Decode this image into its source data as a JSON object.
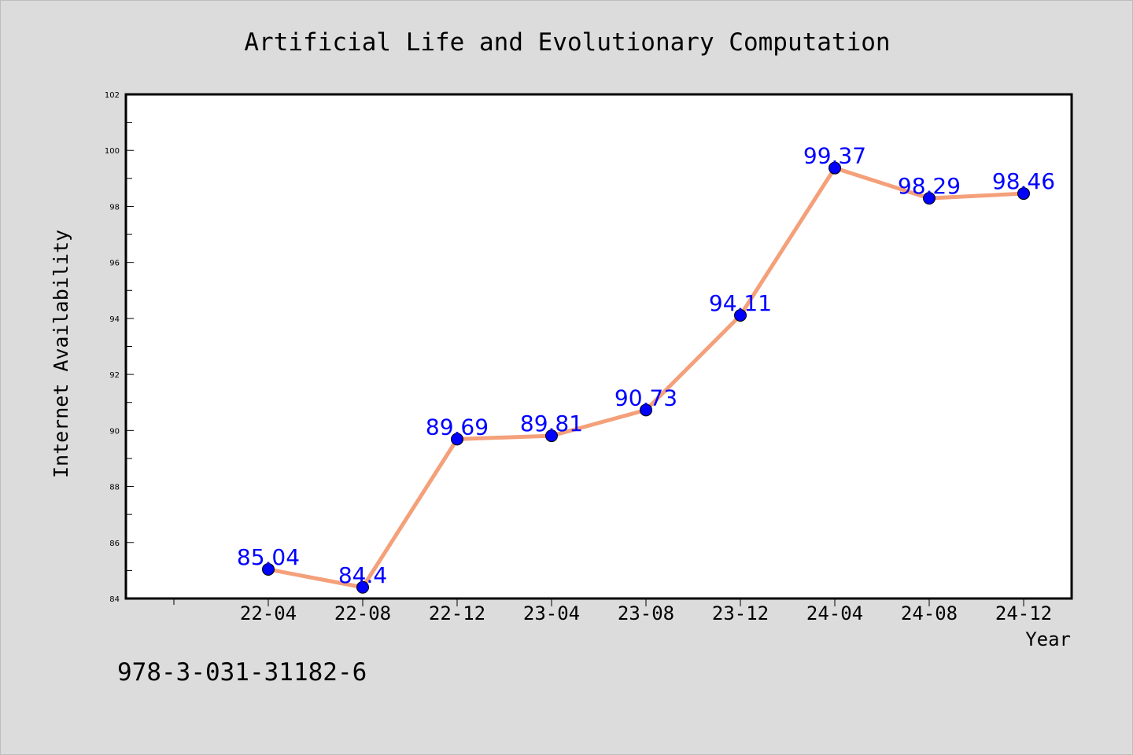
{
  "chart_data": {
    "type": "line",
    "title": "Artificial Life and Evolutionary Computation",
    "xlabel": "Year",
    "ylabel": "Internet Availability",
    "categories": [
      "22-04",
      "22-08",
      "22-12",
      "23-04",
      "23-08",
      "23-12",
      "24-04",
      "24-08",
      "24-12"
    ],
    "values": [
      85.04,
      84.4,
      89.69,
      89.81,
      90.73,
      94.11,
      99.37,
      98.29,
      98.46
    ],
    "data_labels": [
      "85.04",
      "84.4",
      "89.69",
      "89.81",
      "90.73",
      "94.11",
      "99.37",
      "98.29",
      "98.46"
    ],
    "ylim": [
      84,
      102
    ],
    "yticks": [
      84,
      86,
      88,
      90,
      92,
      94,
      96,
      98,
      100,
      102
    ],
    "grid": false,
    "legend": "none",
    "colors": {
      "line": "#f4a07a",
      "marker": "#0000ff",
      "label": "#0000ff",
      "background": "#dcdcdc",
      "plot_area": "#ffffff"
    }
  },
  "footer": {
    "isbn": "978-3-031-31182-6"
  }
}
